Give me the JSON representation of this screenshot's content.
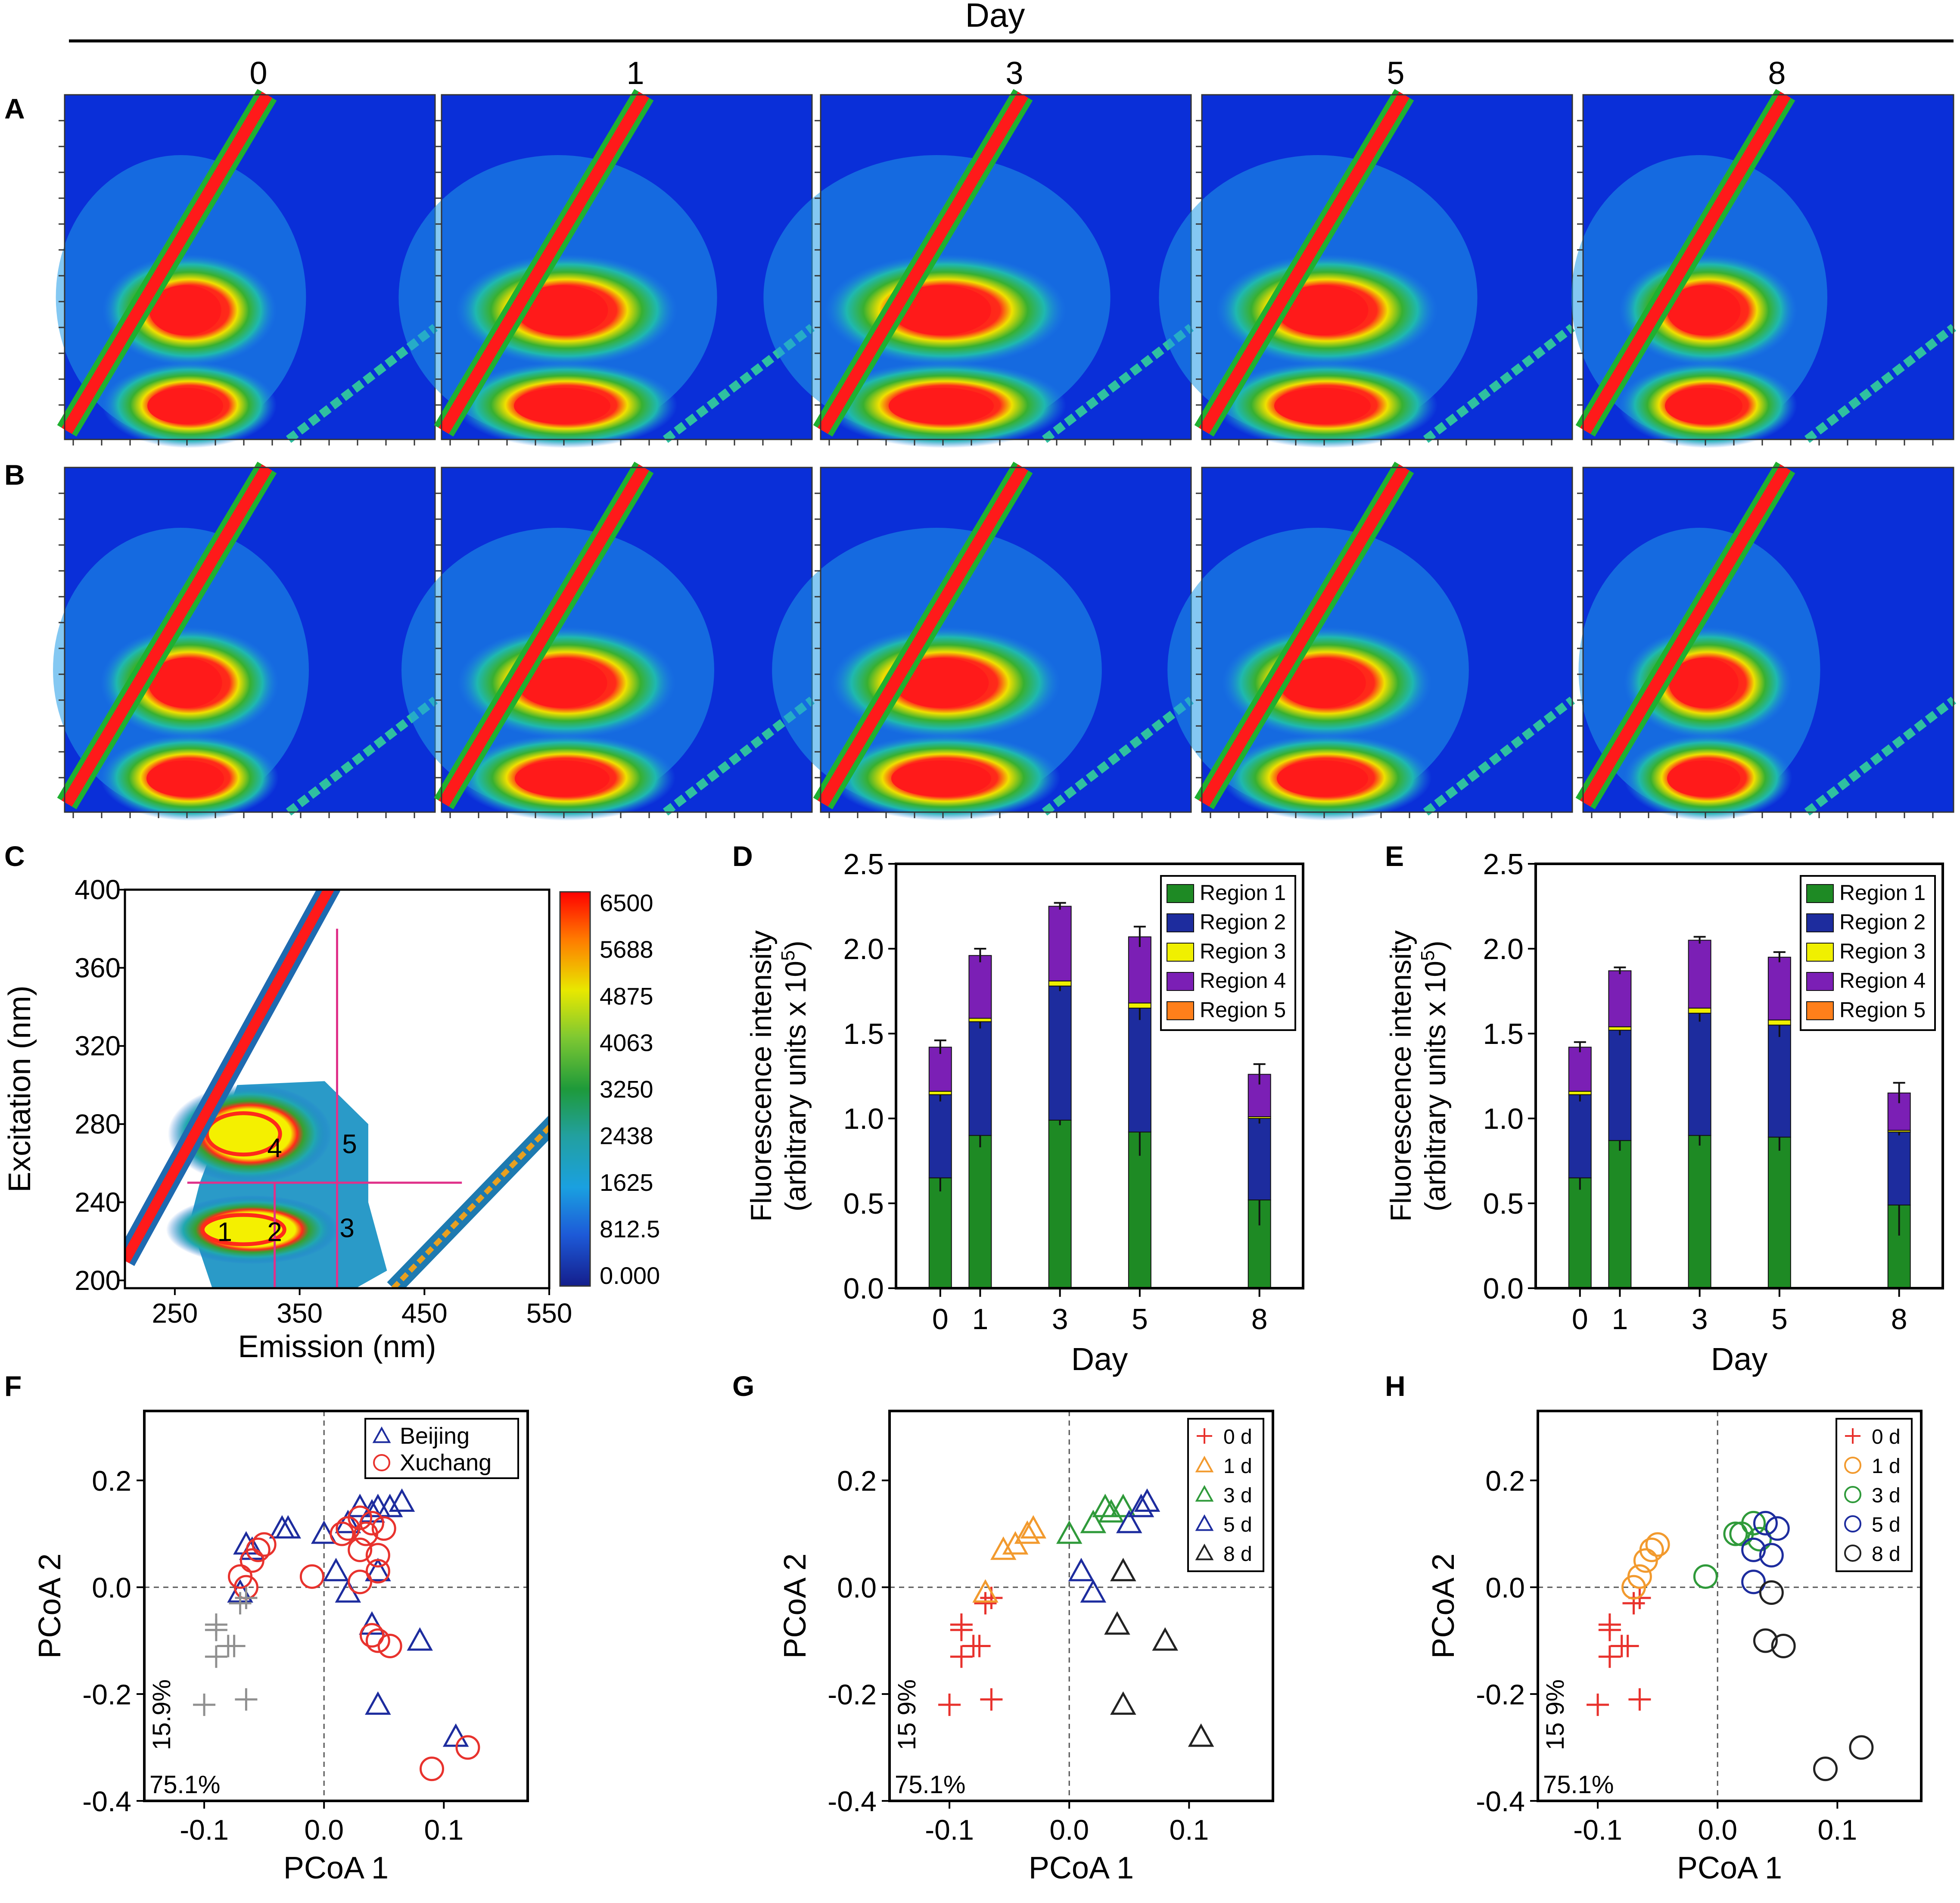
{
  "figure": {
    "top_label": "Day",
    "day_columns": [
      "0",
      "1",
      "3",
      "5",
      "8"
    ],
    "row_labels": [
      "A",
      "B"
    ]
  },
  "colors": {
    "bg": "#0a2fd8",
    "red": "#ee1c1c",
    "green": "#1e8a24",
    "blue": "#1d2c9e",
    "yellow": "#f0f000",
    "purple": "#7b1fb5",
    "orange": "#ff7f1a",
    "gray": "#909090",
    "teal": "#1aa8a8",
    "cyan": "#29c5e6",
    "contour": "#222222"
  },
  "chart_data": [
    {
      "id": "C",
      "panel_label": "C",
      "type": "heatmap",
      "title": "",
      "xlabel": "Emission (nm)",
      "ylabel": "Excitation (nm)",
      "xlim": [
        210,
        550
      ],
      "ylim": [
        196,
        400
      ],
      "xticks": [
        "250",
        "350",
        "450",
        "550"
      ],
      "xtick_values": [
        250,
        350,
        450,
        550
      ],
      "yticks": [
        "200",
        "240",
        "280",
        "320",
        "360",
        "400"
      ],
      "ytick_values": [
        200,
        240,
        280,
        320,
        360,
        400
      ],
      "colorbar_labels": [
        "6500",
        "5688",
        "4875",
        "4063",
        "3250",
        "2438",
        "1625",
        "812.5",
        "0.000"
      ],
      "colorbar_range": [
        0,
        6500
      ],
      "region_labels": [
        {
          "text": "1",
          "em": 290,
          "ex": 225
        },
        {
          "text": "2",
          "em": 330,
          "ex": 225
        },
        {
          "text": "3",
          "em": 388,
          "ex": 227
        },
        {
          "text": "4",
          "em": 330,
          "ex": 268
        },
        {
          "text": "5",
          "em": 390,
          "ex": 270
        }
      ],
      "boundaries": [
        {
          "em": [
            330,
            330
          ],
          "ex": [
            196,
            250
          ]
        },
        {
          "em": [
            380,
            380
          ],
          "ex": [
            196,
            380
          ]
        },
        {
          "em": [
            260,
            480
          ],
          "ex": [
            250,
            250
          ]
        }
      ]
    },
    {
      "id": "D",
      "panel_label": "D",
      "type": "bar",
      "stacked": true,
      "categories": [
        "0",
        "1",
        "3",
        "5",
        "8"
      ],
      "x": [
        0,
        1,
        3,
        5,
        8
      ],
      "xlabel": "Day",
      "ylabel": "Fluorescence intensity",
      "ylabel2": "(arbitrary units x 10",
      "ylabel2_sup": "5",
      "ylabel2_end": ")",
      "ylim": [
        0,
        2.5
      ],
      "yticks": [
        "0.0",
        "0.5",
        "1.0",
        "1.5",
        "2.0",
        "2.5"
      ],
      "legend": "top-right",
      "series": [
        {
          "name": "Region 1",
          "values": [
            0.65,
            0.9,
            0.99,
            0.92,
            0.52
          ],
          "err": [
            0.08,
            0.07,
            0.03,
            0.14,
            0.15
          ]
        },
        {
          "name": "Region 2",
          "values": [
            0.49,
            0.67,
            0.79,
            0.73,
            0.48
          ],
          "err": [
            0.04,
            0.04,
            0.03,
            0.07,
            0.03
          ]
        },
        {
          "name": "Region 3",
          "values": [
            0.02,
            0.02,
            0.03,
            0.03,
            0.01
          ],
          "err": [
            0.0,
            0.0,
            0.0,
            0.0,
            0.0
          ]
        },
        {
          "name": "Region 4",
          "values": [
            0.26,
            0.37,
            0.44,
            0.39,
            0.25
          ],
          "err": [
            0.04,
            0.04,
            0.02,
            0.06,
            0.06
          ]
        },
        {
          "name": "Region 5",
          "values": [
            0.0,
            0.0,
            0.0,
            0.0,
            0.0
          ],
          "err": [
            0,
            0,
            0,
            0,
            0
          ]
        }
      ]
    },
    {
      "id": "E",
      "panel_label": "E",
      "type": "bar",
      "stacked": true,
      "categories": [
        "0",
        "1",
        "3",
        "5",
        "8"
      ],
      "x": [
        0,
        1,
        3,
        5,
        8
      ],
      "xlabel": "Day",
      "ylabel": "Fluorescence intensity",
      "ylabel2": "(arbitrary units x 10",
      "ylabel2_sup": "5",
      "ylabel2_end": ")",
      "ylim": [
        0,
        2.5
      ],
      "yticks": [
        "0.0",
        "0.5",
        "1.0",
        "1.5",
        "2.0",
        "2.5"
      ],
      "legend": "top-right",
      "series": [
        {
          "name": "Region 1",
          "values": [
            0.65,
            0.87,
            0.9,
            0.89,
            0.49
          ],
          "err": [
            0.07,
            0.06,
            0.06,
            0.08,
            0.18
          ]
        },
        {
          "name": "Region 2",
          "values": [
            0.49,
            0.65,
            0.72,
            0.66,
            0.43
          ],
          "err": [
            0.04,
            0.03,
            0.05,
            0.07,
            0.02
          ]
        },
        {
          "name": "Region 3",
          "values": [
            0.02,
            0.02,
            0.03,
            0.03,
            0.01
          ],
          "err": [
            0,
            0,
            0,
            0,
            0
          ]
        },
        {
          "name": "Region 4",
          "values": [
            0.26,
            0.33,
            0.4,
            0.37,
            0.22
          ],
          "err": [
            0.03,
            0.02,
            0.02,
            0.03,
            0.06
          ]
        },
        {
          "name": "Region 5",
          "values": [
            0.0,
            0.0,
            0.0,
            0.0,
            0.0
          ],
          "err": [
            0,
            0,
            0,
            0,
            0
          ]
        }
      ]
    },
    {
      "id": "F",
      "panel_label": "F",
      "type": "scatter",
      "xlabel": "PCoA 1",
      "ylabel": "PCoA 2",
      "xlim": [
        -0.15,
        0.17
      ],
      "ylim": [
        -0.4,
        0.33
      ],
      "xticks": [
        "-0.1",
        "0.0",
        "0.1"
      ],
      "xtick_values": [
        -0.1,
        0.0,
        0.1
      ],
      "yticks": [
        "-0.4",
        "-0.2",
        "0.0",
        "0.2"
      ],
      "ytick_values": [
        -0.4,
        -0.2,
        0.0,
        0.2
      ],
      "var_y": "15.9%",
      "var_x": "75.1%",
      "legend": "top-right",
      "series": [
        {
          "name": "Beijing",
          "marker": "triangle",
          "color": "#1d2c9e",
          "legend": true,
          "points": [
            [
              -0.065,
              0.08
            ],
            [
              -0.06,
              0.07
            ],
            [
              -0.035,
              0.11
            ],
            [
              -0.03,
              0.11
            ],
            [
              -0.07,
              -0.01
            ],
            [
              0.0,
              0.1
            ],
            [
              0.02,
              0.12
            ],
            [
              0.03,
              0.15
            ],
            [
              0.04,
              0.14
            ],
            [
              0.045,
              0.15
            ],
            [
              0.055,
              0.15
            ],
            [
              0.065,
              0.16
            ],
            [
              0.01,
              0.03
            ],
            [
              0.045,
              0.03
            ],
            [
              0.02,
              -0.01
            ],
            [
              0.04,
              -0.07
            ],
            [
              0.08,
              -0.1
            ],
            [
              0.045,
              -0.22
            ],
            [
              0.11,
              -0.28
            ]
          ]
        },
        {
          "name": "Xuchang",
          "marker": "circle",
          "color": "#e8322d",
          "legend": true,
          "points": [
            [
              -0.05,
              0.08
            ],
            [
              -0.055,
              0.07
            ],
            [
              -0.06,
              0.05
            ],
            [
              -0.07,
              0.02
            ],
            [
              -0.065,
              0.0
            ],
            [
              -0.01,
              0.02
            ],
            [
              0.015,
              0.1
            ],
            [
              0.02,
              0.11
            ],
            [
              0.03,
              0.13
            ],
            [
              0.035,
              0.1
            ],
            [
              0.04,
              0.12
            ],
            [
              0.05,
              0.11
            ],
            [
              0.03,
              0.07
            ],
            [
              0.045,
              0.06
            ],
            [
              0.045,
              0.03
            ],
            [
              0.03,
              0.01
            ],
            [
              0.04,
              -0.09
            ],
            [
              0.045,
              -0.1
            ],
            [
              0.055,
              -0.11
            ],
            [
              0.12,
              -0.3
            ],
            [
              0.09,
              -0.34
            ]
          ]
        },
        {
          "name": "",
          "marker": "plus",
          "color": "#909090",
          "legend": false,
          "points": [
            [
              -0.09,
              -0.07
            ],
            [
              -0.09,
              -0.08
            ],
            [
              -0.07,
              -0.03
            ],
            [
              -0.065,
              -0.02
            ],
            [
              -0.08,
              -0.11
            ],
            [
              -0.09,
              -0.13
            ],
            [
              -0.075,
              -0.11
            ],
            [
              -0.1,
              -0.22
            ],
            [
              -0.065,
              -0.21
            ]
          ]
        }
      ]
    },
    {
      "id": "G",
      "panel_label": "G",
      "type": "scatter",
      "xlabel": "PCoA 1",
      "ylabel": "PCoA 2",
      "xlim": [
        -0.15,
        0.17
      ],
      "ylim": [
        -0.4,
        0.33
      ],
      "xticks": [
        "-0.1",
        "0.0",
        "0.1"
      ],
      "xtick_values": [
        -0.1,
        0.0,
        0.1
      ],
      "yticks": [
        "-0.4",
        "-0.2",
        "0.0",
        "0.2"
      ],
      "ytick_values": [
        -0.4,
        -0.2,
        0.0,
        0.2
      ],
      "var_y": "15 9%",
      "var_x": "75.1%",
      "legend": "top-right",
      "series": [
        {
          "name": "0 d",
          "marker": "plus",
          "color": "#e8322d",
          "legend": true,
          "points": [
            [
              -0.09,
              -0.07
            ],
            [
              -0.09,
              -0.08
            ],
            [
              -0.07,
              -0.03
            ],
            [
              -0.065,
              -0.02
            ],
            [
              -0.08,
              -0.11
            ],
            [
              -0.09,
              -0.13
            ],
            [
              -0.075,
              -0.11
            ],
            [
              -0.1,
              -0.22
            ],
            [
              -0.065,
              -0.21
            ]
          ]
        },
        {
          "name": "1 d",
          "marker": "triangle",
          "color": "#f29a2e",
          "legend": true,
          "points": [
            [
              -0.055,
              0.07
            ],
            [
              -0.045,
              0.08
            ],
            [
              -0.035,
              0.1
            ],
            [
              -0.03,
              0.11
            ],
            [
              -0.07,
              -0.01
            ]
          ]
        },
        {
          "name": "3 d",
          "marker": "triangle",
          "color": "#2f9a3a",
          "legend": true,
          "points": [
            [
              0.0,
              0.1
            ],
            [
              0.02,
              0.12
            ],
            [
              0.03,
              0.15
            ],
            [
              0.035,
              0.14
            ],
            [
              0.045,
              0.15
            ]
          ]
        },
        {
          "name": "5 d",
          "marker": "triangle",
          "color": "#1d2c9e",
          "legend": true,
          "points": [
            [
              0.05,
              0.12
            ],
            [
              0.06,
              0.15
            ],
            [
              0.065,
              0.16
            ],
            [
              0.01,
              0.03
            ],
            [
              0.02,
              -0.01
            ]
          ]
        },
        {
          "name": "8 d",
          "marker": "triangle",
          "color": "#222222",
          "legend": true,
          "points": [
            [
              0.045,
              0.03
            ],
            [
              0.04,
              -0.07
            ],
            [
              0.08,
              -0.1
            ],
            [
              0.045,
              -0.22
            ],
            [
              0.11,
              -0.28
            ]
          ]
        }
      ]
    },
    {
      "id": "H",
      "panel_label": "H",
      "type": "scatter",
      "xlabel": "PCoA 1",
      "ylabel": "PCoA 2",
      "xlim": [
        -0.15,
        0.17
      ],
      "ylim": [
        -0.4,
        0.33
      ],
      "xticks": [
        "-0.1",
        "0.0",
        "0.1"
      ],
      "xtick_values": [
        -0.1,
        0.0,
        0.1
      ],
      "yticks": [
        "-0.4",
        "-0.2",
        "0.0",
        "0.2"
      ],
      "ytick_values": [
        -0.4,
        -0.2,
        0.0,
        0.2
      ],
      "var_y": "15 9%",
      "var_x": "75.1%",
      "legend": "top-right",
      "series": [
        {
          "name": "0 d",
          "marker": "plus",
          "color": "#e8322d",
          "legend": true,
          "points": [
            [
              -0.09,
              -0.07
            ],
            [
              -0.09,
              -0.08
            ],
            [
              -0.07,
              -0.03
            ],
            [
              -0.065,
              -0.02
            ],
            [
              -0.08,
              -0.11
            ],
            [
              -0.09,
              -0.13
            ],
            [
              -0.075,
              -0.11
            ],
            [
              -0.1,
              -0.22
            ],
            [
              -0.065,
              -0.21
            ]
          ]
        },
        {
          "name": "1 d",
          "marker": "circle",
          "color": "#f29a2e",
          "legend": true,
          "points": [
            [
              -0.05,
              0.08
            ],
            [
              -0.055,
              0.07
            ],
            [
              -0.06,
              0.05
            ],
            [
              -0.065,
              0.02
            ],
            [
              -0.07,
              0.0
            ]
          ]
        },
        {
          "name": "3 d",
          "marker": "circle",
          "color": "#2f9a3a",
          "legend": true,
          "points": [
            [
              -0.01,
              0.02
            ],
            [
              0.015,
              0.1
            ],
            [
              0.02,
              0.1
            ],
            [
              0.03,
              0.12
            ],
            [
              0.035,
              0.09
            ]
          ]
        },
        {
          "name": "5 d",
          "marker": "circle",
          "color": "#1d2c9e",
          "legend": true,
          "points": [
            [
              0.04,
              0.12
            ],
            [
              0.05,
              0.11
            ],
            [
              0.03,
              0.07
            ],
            [
              0.045,
              0.06
            ],
            [
              0.03,
              0.01
            ]
          ]
        },
        {
          "name": "8 d",
          "marker": "circle",
          "color": "#222222",
          "legend": true,
          "points": [
            [
              0.045,
              -0.01
            ],
            [
              0.04,
              -0.1
            ],
            [
              0.055,
              -0.11
            ],
            [
              0.12,
              -0.3
            ],
            [
              0.09,
              -0.34
            ]
          ]
        }
      ]
    }
  ]
}
